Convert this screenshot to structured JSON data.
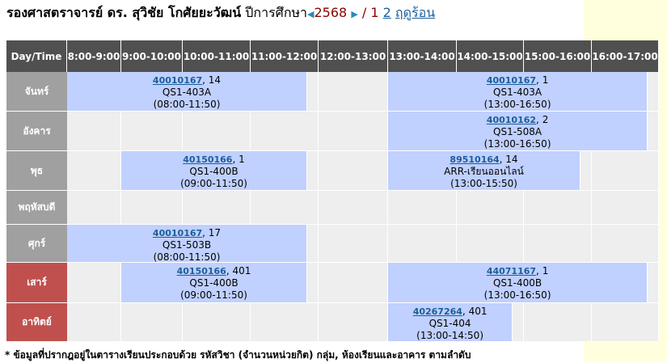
{
  "header": {
    "name": "รองศาสตราจารย์ ดร. สุวิชัย โกศัยยะวัฒน์",
    "year_label": "ปีการศึกษา",
    "year": "2568",
    "separator": "/",
    "current_semester": "1",
    "semester_link": "2",
    "summer_link": "ฤดูร้อน"
  },
  "table": {
    "corner": "Day/Time",
    "time_slots": [
      "8:00-9:00",
      "9:00-10:00",
      "10:00-11:00",
      "11:00-12:00",
      "12:00-13:00",
      "13:00-14:00",
      "14:00-15:00",
      "15:00-16:00",
      "16:00-17:00"
    ],
    "days": [
      {
        "label": "จันทร์",
        "weekend": false
      },
      {
        "label": "อังคาร",
        "weekend": false
      },
      {
        "label": "พุธ",
        "weekend": false
      },
      {
        "label": "พฤหัสบดี",
        "weekend": false
      },
      {
        "label": "ศุกร์",
        "weekend": false
      },
      {
        "label": "เสาร์",
        "weekend": true
      },
      {
        "label": "อาทิตย์",
        "weekend": true
      }
    ],
    "classes": [
      {
        "day": 0,
        "course": "40010167",
        "group": "14",
        "room": "QS1-403A",
        "time": "(08:00-11:50)",
        "start": "08:00",
        "end": "11:50"
      },
      {
        "day": 0,
        "course": "40010167",
        "group": "1",
        "room": "QS1-403A",
        "time": "(13:00-16:50)",
        "start": "13:00",
        "end": "16:50"
      },
      {
        "day": 1,
        "course": "40010162",
        "group": "2",
        "room": "QS1-508A",
        "time": "(13:00-16:50)",
        "start": "13:00",
        "end": "16:50"
      },
      {
        "day": 2,
        "course": "40150166",
        "group": "1",
        "room": "QS1-400B",
        "time": "(09:00-11:50)",
        "start": "09:00",
        "end": "11:50"
      },
      {
        "day": 2,
        "course": "89510164",
        "group": "14",
        "room": "ARR-เรียนออนไลน์",
        "time": "(13:00-15:50)",
        "start": "13:00",
        "end": "15:50"
      },
      {
        "day": 4,
        "course": "40010167",
        "group": "17",
        "room": "QS1-503B",
        "time": "(08:00-11:50)",
        "start": "08:00",
        "end": "11:50"
      },
      {
        "day": 5,
        "course": "40150166",
        "group": "401",
        "room": "QS1-400B",
        "time": "(09:00-11:50)",
        "start": "09:00",
        "end": "11:50"
      },
      {
        "day": 5,
        "course": "44071167",
        "group": "1",
        "room": "QS1-400B",
        "time": "(13:00-16:50)",
        "start": "13:00",
        "end": "16:50"
      },
      {
        "day": 6,
        "course": "40267264",
        "group": "401",
        "room": "QS1-404",
        "time": "(13:00-14:50)",
        "start": "13:00",
        "end": "14:50"
      }
    ]
  },
  "footnote": "* ข้อมูลที่ปรากฎอยู่ในตารางเรียนประกอบด้วย รหัสวิชา (จำนวนหน่วยกิต) กลุ่ม, ห้องเรียนและอาคาร ตามลำดับ",
  "colors": {
    "header_bg": "#505050",
    "day_bg": "#a0a0a0",
    "weekend_bg": "#c0504d",
    "class_bg": "#c0d0ff",
    "empty_bg": "#eeeeee",
    "side_bg": "#ffffdd"
  }
}
